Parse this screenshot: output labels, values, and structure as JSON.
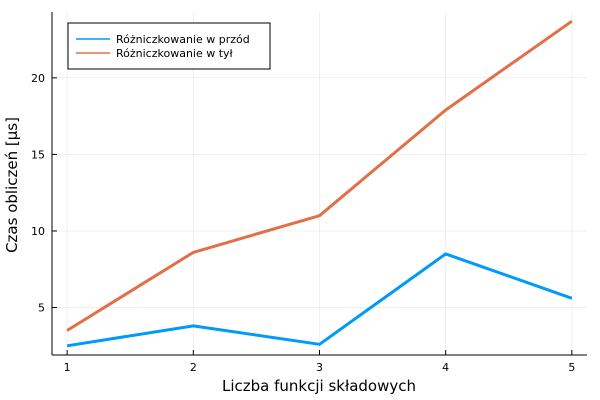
{
  "chart_data": {
    "type": "line",
    "title": "",
    "xlabel": "Liczba funkcji składowych",
    "ylabel": "Czas obliczeń [μs]",
    "x": [
      1,
      2,
      3,
      4,
      5
    ],
    "xlim": [
      0.88,
      5.12
    ],
    "ylim": [
      1.9,
      24.3
    ],
    "xticks": [
      1,
      2,
      3,
      4,
      5
    ],
    "yticks": [
      5,
      10,
      15,
      20
    ],
    "grid": true,
    "legend_position": "top-left",
    "series": [
      {
        "name": "Różniczkowanie w przód",
        "color": "#009af9",
        "values": [
          2.5,
          3.8,
          2.6,
          8.5,
          5.6
        ]
      },
      {
        "name": "Różniczkowanie w tył",
        "color": "#e26f46",
        "values": [
          3.5,
          8.6,
          11.0,
          17.9,
          23.7
        ]
      }
    ]
  }
}
